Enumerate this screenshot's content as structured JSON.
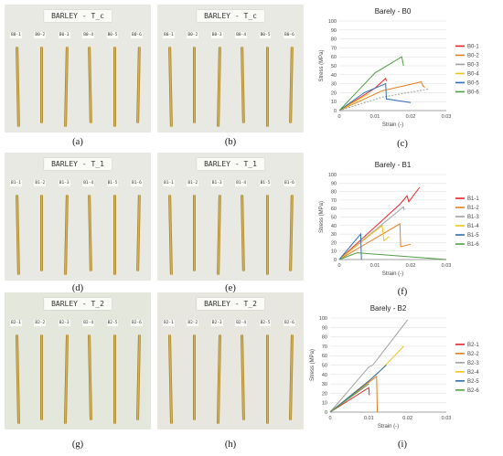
{
  "photos": [
    {
      "id": "a",
      "tag": "BARLEY - T_c",
      "labels": [
        "B0-1",
        "B0-2",
        "B0-3",
        "B0-4",
        "B0-5",
        "B0-6"
      ]
    },
    {
      "id": "b",
      "tag": "BARLEY - T_c",
      "labels": [
        "B0-1",
        "B0-2",
        "B0-3",
        "B0-4",
        "B0-5",
        "B0-6"
      ]
    },
    {
      "id": "d",
      "tag": "BARLEY - T_1",
      "labels": [
        "B1-1",
        "B1-2",
        "B1-3",
        "B1-4",
        "B1-5",
        "B1-6"
      ]
    },
    {
      "id": "e",
      "tag": "BARLEY - T_1",
      "labels": [
        "B1-1",
        "B1-2",
        "B1-3",
        "B1-4",
        "B1-5",
        "B1-6"
      ]
    },
    {
      "id": "g",
      "tag": "BARLEY - T_2",
      "labels": [
        "B2-1",
        "B2-2",
        "B2-3",
        "B2-4",
        "B2-5",
        "B2-6"
      ]
    },
    {
      "id": "h",
      "tag": "BARLEY - T_2",
      "labels": [
        "B2-1",
        "B2-2",
        "B2-3",
        "B2-4",
        "B2-5",
        "B2-6"
      ]
    }
  ],
  "captions": {
    "a": "(a)",
    "b": "(b)",
    "c": "(c)",
    "d": "(d)",
    "e": "(e)",
    "f": "(f)",
    "g": "(g)",
    "h": "(h)",
    "i": "(i)"
  },
  "chart_data": [
    {
      "type": "line",
      "title": "Barely - B0",
      "xlabel": "Strain (-)",
      "ylabel": "Stress (MPa)",
      "xlim": [
        0,
        0.03
      ],
      "ylim": [
        0,
        100
      ],
      "xticks": [
        0,
        0.01,
        0.02,
        0.03
      ],
      "xtick_labels": [
        "0",
        "0.01",
        "0.02",
        "0.03"
      ],
      "yticks": [
        0,
        10,
        20,
        30,
        40,
        50,
        60,
        70,
        80,
        90,
        100
      ],
      "grid": true,
      "legend": "right",
      "series": [
        {
          "name": "B0-1",
          "color": "#e8272a",
          "points": [
            [
              0,
              0
            ],
            [
              0.01,
              25
            ],
            [
              0.013,
              36
            ],
            [
              0.0132,
              33
            ]
          ]
        },
        {
          "name": "B0-2",
          "color": "#e67e22",
          "points": [
            [
              0,
              0
            ],
            [
              0.012,
              22
            ],
            [
              0.023,
              32
            ],
            [
              0.0235,
              27
            ],
            [
              0.024,
              26
            ]
          ]
        },
        {
          "name": "B0-3",
          "color": "#a0a0a0",
          "dashed": true,
          "points": [
            [
              0,
              0
            ],
            [
              0.012,
              15
            ],
            [
              0.025,
              24
            ]
          ]
        },
        {
          "name": "B0-4",
          "color": "#f2c218",
          "points": [
            [
              0,
              0
            ],
            [
              0.007,
              16
            ],
            [
              0.0085,
              19
            ]
          ]
        },
        {
          "name": "B0-5",
          "color": "#2e6db5",
          "points": [
            [
              0,
              0
            ],
            [
              0.007,
              20
            ],
            [
              0.013,
              30
            ],
            [
              0.0132,
              13
            ],
            [
              0.02,
              9
            ]
          ]
        },
        {
          "name": "B0-6",
          "color": "#4fa044",
          "points": [
            [
              0,
              0
            ],
            [
              0.01,
              42
            ],
            [
              0.0175,
              60
            ],
            [
              0.018,
              50
            ]
          ]
        }
      ]
    },
    {
      "type": "line",
      "title": "Barely - B1",
      "xlabel": "Strain (-)",
      "ylabel": "Stress (MPa)",
      "xlim": [
        0,
        0.03
      ],
      "ylim": [
        0,
        100
      ],
      "xticks": [
        0,
        0.01,
        0.02,
        0.03
      ],
      "xtick_labels": [
        "0",
        "0.01",
        "0.02",
        "0.03"
      ],
      "yticks": [
        0,
        10,
        20,
        30,
        40,
        50,
        60,
        70,
        80,
        90,
        100
      ],
      "grid": true,
      "legend": "right",
      "series": [
        {
          "name": "B1-1",
          "color": "#e8272a",
          "points": [
            [
              0,
              0
            ],
            [
              0.017,
              65
            ],
            [
              0.019,
              75
            ],
            [
              0.0195,
              68
            ],
            [
              0.0225,
              85
            ]
          ]
        },
        {
          "name": "B1-2",
          "color": "#e67e22",
          "points": [
            [
              0,
              0
            ],
            [
              0.017,
              42
            ],
            [
              0.0172,
              15
            ],
            [
              0.02,
              18
            ]
          ]
        },
        {
          "name": "B1-3",
          "color": "#a0a0a0",
          "points": [
            [
              0,
              0
            ],
            [
              0.016,
              55
            ],
            [
              0.018,
              62
            ],
            [
              0.0182,
              58
            ]
          ]
        },
        {
          "name": "B1-4",
          "color": "#f2c218",
          "points": [
            [
              0,
              0
            ],
            [
              0.012,
              40
            ],
            [
              0.0125,
              22
            ],
            [
              0.014,
              27
            ]
          ]
        },
        {
          "name": "B1-5",
          "color": "#2e6db5",
          "points": [
            [
              0,
              0
            ],
            [
              0.006,
              30
            ],
            [
              0.0062,
              0
            ]
          ]
        },
        {
          "name": "B1-6",
          "color": "#4fa044",
          "points": [
            [
              0,
              0
            ],
            [
              0.005,
              8
            ],
            [
              0.03,
              0
            ]
          ]
        }
      ]
    },
    {
      "type": "line",
      "title": "Barely - B2",
      "xlabel": "Strain (-)",
      "ylabel": "Stress (MPa)",
      "xlim": [
        0,
        0.03
      ],
      "ylim": [
        0,
        100
      ],
      "xticks": [
        0,
        0.01,
        0.02,
        0.03
      ],
      "xtick_labels": [
        "0",
        "0.01",
        "0.02",
        "0.03"
      ],
      "yticks": [
        0,
        10,
        20,
        30,
        40,
        50,
        60,
        70,
        80,
        90,
        100
      ],
      "grid": true,
      "legend": "right",
      "series": [
        {
          "name": "B2-1",
          "color": "#e8272a",
          "points": [
            [
              0,
              0
            ],
            [
              0.01,
              26
            ],
            [
              0.0101,
              18
            ]
          ]
        },
        {
          "name": "B2-2",
          "color": "#e67e22",
          "points": [
            [
              0,
              0
            ],
            [
              0.012,
              38
            ],
            [
              0.0122,
              0
            ]
          ]
        },
        {
          "name": "B2-3",
          "color": "#a0a0a0",
          "points": [
            [
              0,
              0
            ],
            [
              0.01,
              48
            ],
            [
              0.011,
              50
            ],
            [
              0.02,
              98
            ]
          ]
        },
        {
          "name": "B2-4",
          "color": "#f2c218",
          "points": [
            [
              0,
              0
            ],
            [
              0.012,
              40
            ],
            [
              0.019,
              70
            ]
          ]
        },
        {
          "name": "B2-5",
          "color": "#2e6db5",
          "points": [
            [
              0,
              0
            ],
            [
              0.01,
              33
            ],
            [
              0.0145,
              50
            ]
          ]
        },
        {
          "name": "B2-6",
          "color": "#4fa044",
          "points": [
            [
              0,
              0
            ],
            [
              0.01,
              30
            ]
          ]
        }
      ]
    }
  ]
}
